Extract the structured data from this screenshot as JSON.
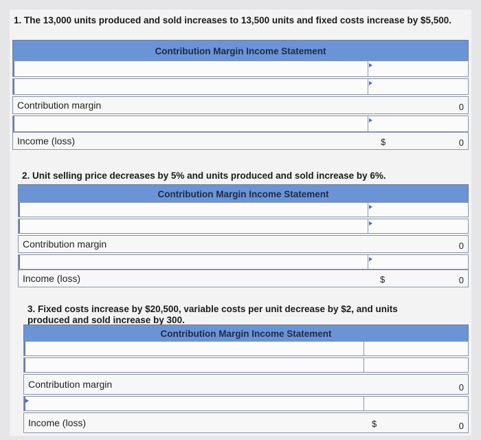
{
  "section1": {
    "prompt": "1. The 13,000 units produced and sold increases to 13,500 units and fixed costs increase by $5,500.",
    "title": "Contribution Margin Income Statement",
    "cm_label": "Contribution margin",
    "cm_value": "0",
    "income_label": "Income (loss)",
    "income_currency": "$",
    "income_value": "0"
  },
  "section2": {
    "prompt": "2. Unit selling price decreases by 5% and units produced and sold increase by 6%.",
    "title": "Contribution Margin Income Statement",
    "cm_label": "Contribution margin",
    "cm_value": "0",
    "income_label": "Income (loss)",
    "income_currency": "$",
    "income_value": "0"
  },
  "section3": {
    "prompt": "3. Fixed costs increase by $20,500, variable costs per unit decrease by $2, and units produced and sold increase by 300.",
    "title": "Contribution Margin Income Statement",
    "cm_label": "Contribution margin",
    "cm_value": "0",
    "income_label": "Income (loss)",
    "income_currency": "$",
    "income_value": "0"
  },
  "colors": {
    "title_bar": "#6b94d6",
    "border": "#8a93a6"
  }
}
